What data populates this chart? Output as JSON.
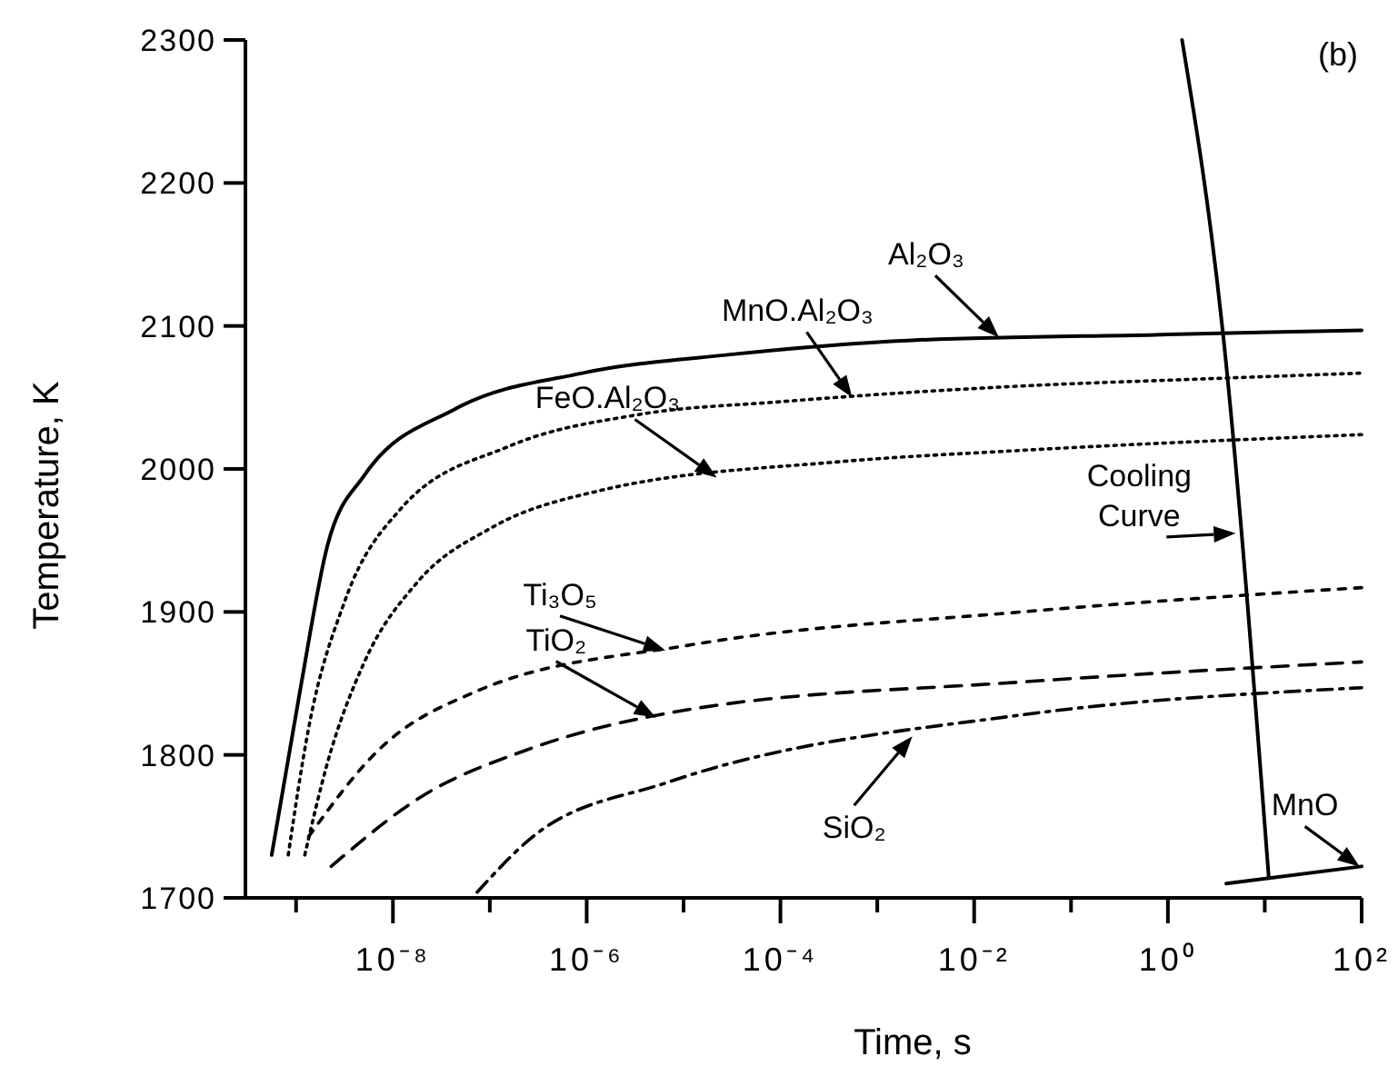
{
  "chart_data": {
    "type": "line",
    "xlabel": "Time, s",
    "ylabel": "Temperature, K",
    "log": "x",
    "grid": false,
    "marker": "none",
    "xlim": [
      3e-10,
      100
    ],
    "ylim": [
      1700,
      2300
    ],
    "xticks": [
      {
        "value": 1e-09,
        "label": null
      },
      {
        "value": 1e-08,
        "label": "10⁻⁸"
      },
      {
        "value": 1e-07,
        "label": null
      },
      {
        "value": 1e-06,
        "label": "10⁻⁶"
      },
      {
        "value": 1e-05,
        "label": null
      },
      {
        "value": 0.0001,
        "label": "10⁻⁴"
      },
      {
        "value": 0.001,
        "label": null
      },
      {
        "value": 0.01,
        "label": "10⁻²"
      },
      {
        "value": 0.1,
        "label": null
      },
      {
        "value": 1,
        "label": "10⁰"
      },
      {
        "value": 10,
        "label": null
      },
      {
        "value": 100,
        "label": "10²"
      }
    ],
    "yticks": [
      1700,
      1800,
      1900,
      2000,
      2100,
      2200,
      2300
    ],
    "series": [
      {
        "color": "#000000",
        "line_style": "solid",
        "x": [
          5.6e-10,
          1.1e-09,
          2.1e-09,
          5e-09,
          4.4e-08,
          9e-07,
          3e-05,
          0.0023,
          1,
          100
        ],
        "values": [
          1730,
          1845,
          1946,
          1995,
          2042,
          2067,
          2080,
          2090,
          2094,
          2097
        ]
      },
      {
        "color": "#000000",
        "line_style": "dotted",
        "x": [
          8.3e-10,
          1.35e-09,
          3.2e-09,
          1.2e-08,
          1.6e-07,
          3.4e-06,
          0.0001,
          0.031,
          2.4,
          100
        ],
        "values": [
          1730,
          1819,
          1908,
          1972,
          2016,
          2038,
          2047,
          2058,
          2063,
          2067
        ]
      },
      {
        "color": "#000000",
        "line_style": "dotted",
        "x": [
          1.23e-09,
          2.1e-09,
          5e-09,
          1.8e-08,
          1.05e-07,
          1.4e-06,
          0.0004,
          0.031,
          100
        ],
        "values": [
          1730,
          1794,
          1864,
          1921,
          1959,
          1985,
          2005,
          2013,
          2024
        ]
      },
      {
        "color": "#000000",
        "line_style": "shortdash",
        "x": [
          1.35e-09,
          7e-09,
          7.6e-08,
          1.2e-05,
          0.031,
          100
        ],
        "values": [
          1743,
          1803,
          1845,
          1877,
          1900,
          1917
        ]
      },
      {
        "color": "#000000",
        "line_style": "dashed",
        "x": [
          2.3e-09,
          2.1e-08,
          2.3e-07,
          1.2e-05,
          0.031,
          100
        ],
        "values": [
          1722,
          1772,
          1803,
          1832,
          1851,
          1865
        ]
      },
      {
        "color": "#000000",
        "line_style": "dashdot",
        "x": [
          7.4e-08,
          2.8e-07,
          7e-06,
          0.031,
          100
        ],
        "values": [
          1704,
          1743,
          1781,
          1828,
          1847
        ]
      },
      {
        "color": "#000000",
        "line_style": "solid",
        "x": [
          1.4,
          3.7,
          11
        ],
        "values": [
          2300,
          2095,
          1714
        ]
      },
      {
        "color": "#000000",
        "line_style": "solid",
        "x": [
          4,
          100
        ],
        "values": [
          1710,
          1722
        ]
      }
    ],
    "annotations": [
      {
        "text": "Al₂O₃",
        "x": 0.018,
        "y": 2092
      },
      {
        "text": "MnO.Al₂O₃",
        "x": 0.00055,
        "y": 2050
      },
      {
        "text": "FeO.Al₂O₃",
        "x": 2.2e-05,
        "y": 1994
      },
      {
        "text": "Cooling Curve",
        "x": 5,
        "y": 1955
      },
      {
        "text": "Ti₃O₅",
        "x": 6.5e-06,
        "y": 1873
      },
      {
        "text": "TiO₂",
        "x": 5.2e-06,
        "y": 1826
      },
      {
        "text": "SiO₂",
        "x": 0.0023,
        "y": 1813
      },
      {
        "text": "MnO",
        "x": 95,
        "y": 1722
      },
      "(b)"
    ]
  }
}
